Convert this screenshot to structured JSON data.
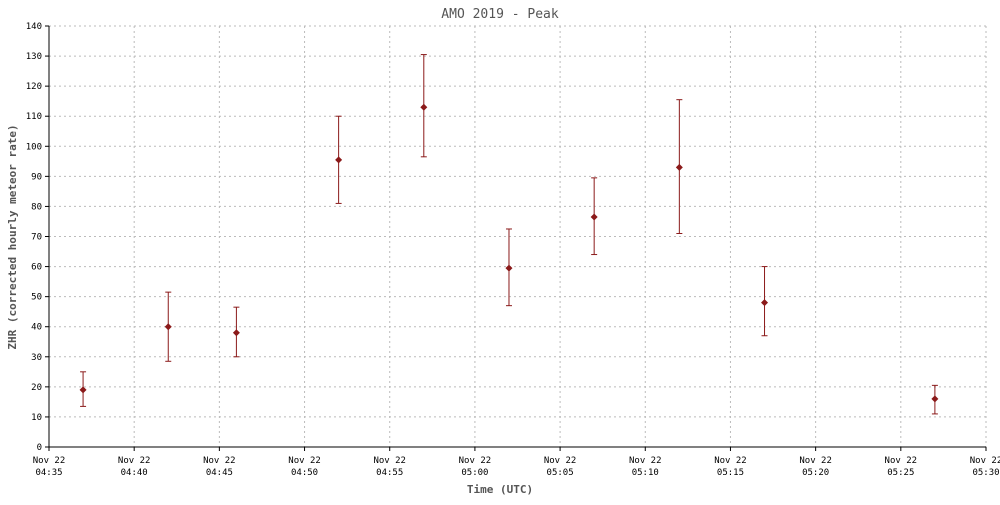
{
  "chart_data": {
    "type": "scatter",
    "title": "AMO 2019 - Peak",
    "xlabel": "Time (UTC)",
    "ylabel": "ZHR (corrected hourly meteor rate)",
    "ylim": [
      0,
      140
    ],
    "y_ticks": [
      0,
      10,
      20,
      30,
      40,
      50,
      60,
      70,
      80,
      90,
      100,
      110,
      120,
      130,
      140
    ],
    "x_range_minutes": [
      275,
      330
    ],
    "x_ticks": [
      {
        "min": 275,
        "date": "Nov 22",
        "time": "04:35"
      },
      {
        "min": 280,
        "date": "Nov 22",
        "time": "04:40"
      },
      {
        "min": 285,
        "date": "Nov 22",
        "time": "04:45"
      },
      {
        "min": 290,
        "date": "Nov 22",
        "time": "04:50"
      },
      {
        "min": 295,
        "date": "Nov 22",
        "time": "04:55"
      },
      {
        "min": 300,
        "date": "Nov 22",
        "time": "05:00"
      },
      {
        "min": 305,
        "date": "Nov 22",
        "time": "05:05"
      },
      {
        "min": 310,
        "date": "Nov 22",
        "time": "05:10"
      },
      {
        "min": 315,
        "date": "Nov 22",
        "time": "05:15"
      },
      {
        "min": 320,
        "date": "Nov 22",
        "time": "05:20"
      },
      {
        "min": 325,
        "date": "Nov 22",
        "time": "05:25"
      },
      {
        "min": 330,
        "date": "Nov 22",
        "time": "05:30"
      }
    ],
    "grid": true,
    "series": [
      {
        "color": "#8b1a1a",
        "points": [
          {
            "time": "04:37",
            "y": 19,
            "low": 13.5,
            "high": 25
          },
          {
            "time": "04:42",
            "y": 40,
            "low": 28.5,
            "high": 51.5
          },
          {
            "time": "04:46",
            "y": 38,
            "low": 30,
            "high": 46.5
          },
          {
            "time": "04:52",
            "y": 95.5,
            "low": 81,
            "high": 110
          },
          {
            "time": "04:57",
            "y": 113,
            "low": 96.5,
            "high": 130.5
          },
          {
            "time": "05:02",
            "y": 59.5,
            "low": 47,
            "high": 72.5
          },
          {
            "time": "05:07",
            "y": 76.5,
            "low": 64,
            "high": 89.5
          },
          {
            "time": "05:12",
            "y": 93,
            "low": 71,
            "high": 115.5
          },
          {
            "time": "05:17",
            "y": 48,
            "low": 37,
            "high": 60
          },
          {
            "time": "05:27",
            "y": 16,
            "low": 11,
            "high": 20.5
          }
        ]
      }
    ]
  }
}
